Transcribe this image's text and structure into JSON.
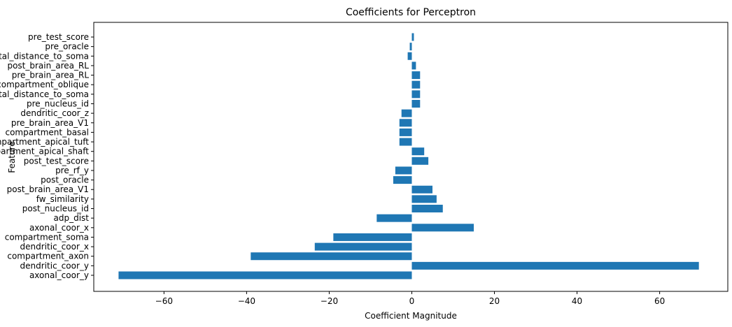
{
  "chart_data": {
    "type": "bar",
    "orientation": "horizontal",
    "title": "Coefficients for Perceptron",
    "xlabel": "Coefficient Magnitude",
    "ylabel": "Feature",
    "xlim": [
      -77,
      76.5
    ],
    "xticks": [
      -60,
      -40,
      -20,
      0,
      20,
      40,
      60
    ],
    "xtick_labels": [
      "−60",
      "−40",
      "−20",
      "0",
      "20",
      "40",
      "60"
    ],
    "grid": false,
    "bar_color": "#1f77b4",
    "categories": [
      "pre_test_score",
      "pre_oracle",
      "post_skeletal_distance_to_soma",
      "post_brain_area_RL",
      "pre_brain_area_RL",
      "compartment_oblique",
      "pre_skeletal_distance_to_soma",
      "pre_nucleus_id",
      "dendritic_coor_z",
      "pre_brain_area_V1",
      "compartment_basal",
      "compartment_apical_tuft",
      "compartment_apical_shaft",
      "post_test_score",
      "pre_rf_y",
      "post_oracle",
      "post_brain_area_V1",
      "fw_similarity",
      "post_nucleus_id",
      "adp_dist",
      "axonal_coor_x",
      "compartment_soma",
      "dendritic_coor_x",
      "compartment_axon",
      "dendritic_coor_y",
      "axonal_coor_y"
    ],
    "values": [
      0.5,
      -0.5,
      -1.0,
      1.0,
      2.0,
      2.0,
      2.0,
      2.0,
      -2.5,
      -3.0,
      -3.0,
      -3.0,
      3.0,
      4.0,
      -4.0,
      -4.5,
      5.0,
      6.0,
      7.5,
      -8.5,
      15.0,
      -19.0,
      -23.5,
      -39.0,
      69.5,
      -71.0
    ]
  }
}
